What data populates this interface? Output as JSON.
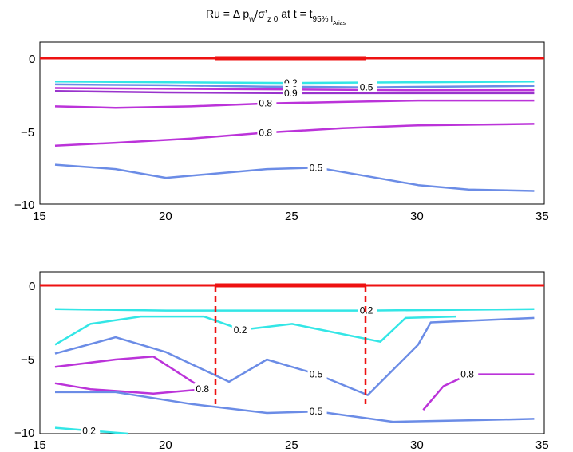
{
  "figure": {
    "title": {
      "t1": "Ru = Δ p",
      "t2": "w",
      "t3": "/σ’",
      "t4": "z 0",
      "t5": " at t = t",
      "t6": "95% I",
      "t7": "Arias"
    }
  },
  "colors": {
    "ru_0_2": "#33e6e6",
    "ru_0_5": "#6b8ce6",
    "ru_0_8": "#bb33d9",
    "ru_0_9": "#9933cc",
    "ru_1": "#cc33cc",
    "ru_0_95": "#e633b3",
    "structure": "#ee1111"
  },
  "chart_data": [
    {
      "type": "contour",
      "title": "Ru = Δ p_w/σ’_z0 at t = t_95% I_Arias",
      "xlim": [
        15,
        35
      ],
      "ylim": [
        -10,
        1
      ],
      "xticks": [
        "15",
        "20",
        "25",
        "30",
        "35"
      ],
      "yticks": [
        "0",
        "-5",
        "-10"
      ],
      "structure": {
        "surface": [
          [
            15,
            0
          ],
          [
            35,
            0
          ]
        ],
        "thick_segment": [
          [
            22,
            0.1
          ],
          [
            28,
            0.1
          ]
        ]
      },
      "contours": [
        {
          "level": 0.2,
          "color": "ru_0_2",
          "points": [
            [
              15.6,
              -1.6
            ],
            [
              20,
              -1.65
            ],
            [
              25,
              -1.7
            ],
            [
              30,
              -1.65
            ],
            [
              34.6,
              -1.6
            ]
          ]
        },
        {
          "level": 0.5,
          "color": "ru_0_5",
          "points": [
            [
              15.6,
              -1.8
            ],
            [
              20,
              -1.85
            ],
            [
              24,
              -1.95
            ],
            [
              28,
              -2.0
            ],
            [
              31,
              -1.95
            ],
            [
              34.6,
              -1.9
            ]
          ]
        },
        {
          "level": 0.8,
          "color": "ru_0_8",
          "points": [
            [
              15.6,
              -2.05
            ],
            [
              20,
              -2.1
            ],
            [
              25,
              -2.15
            ],
            [
              30,
              -2.2
            ],
            [
              34.6,
              -2.2
            ]
          ]
        },
        {
          "level": 0.9,
          "color": "ru_0_9",
          "points": [
            [
              15.6,
              -2.25
            ],
            [
              20,
              -2.35
            ],
            [
              25,
              -2.4
            ],
            [
              30,
              -2.4
            ],
            [
              34.6,
              -2.4
            ]
          ]
        },
        {
          "level": 0.8,
          "color": "ru_0_8",
          "points": [
            [
              15.6,
              -3.3
            ],
            [
              18,
              -3.4
            ],
            [
              21,
              -3.3
            ],
            [
              24,
              -3.1
            ],
            [
              27,
              -3.0
            ],
            [
              30,
              -2.9
            ],
            [
              34.6,
              -2.9
            ]
          ]
        },
        {
          "level": 0.8,
          "color": "ru_0_8",
          "points": [
            [
              15.6,
              -6.0
            ],
            [
              18,
              -5.8
            ],
            [
              21,
              -5.5
            ],
            [
              24,
              -5.1
            ],
            [
              27,
              -4.8
            ],
            [
              30,
              -4.6
            ],
            [
              34.6,
              -4.5
            ]
          ]
        },
        {
          "level": 0.5,
          "color": "ru_0_5",
          "points": [
            [
              15.6,
              -7.3
            ],
            [
              18,
              -7.6
            ],
            [
              20,
              -8.2
            ],
            [
              22,
              -7.9
            ],
            [
              24,
              -7.6
            ],
            [
              26,
              -7.5
            ],
            [
              28,
              -8.1
            ],
            [
              30,
              -8.7
            ],
            [
              32,
              -9.0
            ],
            [
              34.6,
              -9.1
            ]
          ]
        },
        {
          "level": 0.2,
          "color": "ru_0_2",
          "points": [
            [
              15.6,
              -1.6
            ],
            [
              20,
              -1.7
            ],
            [
              28,
              -1.7
            ],
            [
              34.6,
              -1.6
            ]
          ]
        },
        {
          "level": 0.2,
          "color": "ru_0_2",
          "points": [
            [
              15.6,
              -4.0
            ],
            [
              17,
              -2.6
            ],
            [
              19,
              -2.1
            ],
            [
              21.5,
              -2.1
            ],
            [
              23,
              -3.0
            ],
            [
              25,
              -2.6
            ],
            [
              28.5,
              -3.8
            ],
            [
              29.5,
              -2.2
            ],
            [
              31.5,
              -2.1
            ]
          ]
        },
        {
          "level": 0.5,
          "color": "ru_0_5",
          "points": [
            [
              15.6,
              -4.6
            ],
            [
              18,
              -3.5
            ],
            [
              20,
              -4.5
            ],
            [
              22.5,
              -6.5
            ],
            [
              24,
              -5.0
            ],
            [
              26,
              -6.0
            ],
            [
              28,
              -7.4
            ],
            [
              30,
              -4.0
            ],
            [
              30.5,
              -2.5
            ],
            [
              34.6,
              -2.2
            ]
          ]
        },
        {
          "level": 0.8,
          "color": "ru_0_8",
          "points": [
            [
              15.6,
              -5.5
            ],
            [
              18,
              -5.0
            ],
            [
              19.5,
              -4.8
            ],
            [
              21.5,
              -7.0
            ],
            [
              19.5,
              -7.3
            ],
            [
              17,
              -7.0
            ],
            [
              15.6,
              -6.6
            ]
          ]
        },
        {
          "level": 0.5,
          "color": "ru_0_5",
          "points": [
            [
              15.6,
              -7.2
            ],
            [
              18,
              -7.2
            ],
            [
              21,
              -8.0
            ],
            [
              24,
              -8.6
            ],
            [
              26,
              -8.5
            ],
            [
              29,
              -9.2
            ],
            [
              32,
              -9.1
            ],
            [
              34.6,
              -9.0
            ]
          ]
        },
        {
          "level": 0.8,
          "color": "ru_0_8",
          "points": [
            [
              30.2,
              -8.4
            ],
            [
              31,
              -6.8
            ],
            [
              32,
              -6.0
            ],
            [
              34.6,
              -6.0
            ]
          ]
        },
        {
          "level": 0.2,
          "color": "ru_0_2",
          "points": [
            [
              15.6,
              -9.6
            ],
            [
              17,
              -9.8
            ],
            [
              18.5,
              -10
            ]
          ]
        }
      ]
    }
  ]
}
